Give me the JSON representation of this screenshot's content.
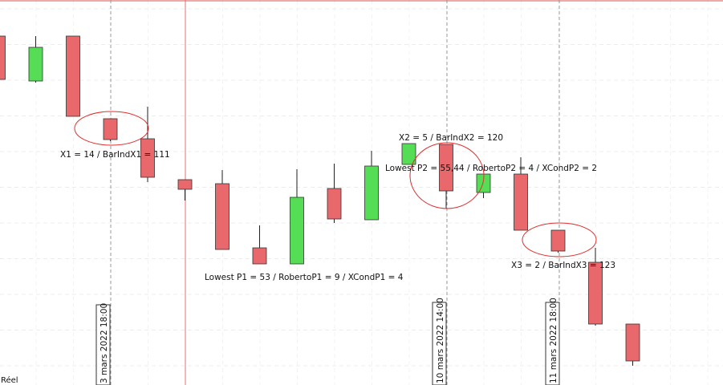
{
  "chart_data": {
    "type": "candlestick",
    "up_color": "#55dd55",
    "down_color": "#e8686b",
    "ylim": [
      0,
      480
    ],
    "candles": [
      {
        "open": 435,
        "high": 435,
        "low": 381,
        "close": 381
      },
      {
        "open": 379,
        "high": 435,
        "low": 377,
        "close": 421
      },
      {
        "open": 435,
        "high": 435,
        "low": 335,
        "close": 335
      },
      {
        "open": 332,
        "high": 332,
        "low": 304,
        "close": 306
      },
      {
        "open": 307,
        "high": 347,
        "low": 253,
        "close": 259
      },
      {
        "open": 256,
        "high": 256,
        "low": 230,
        "close": 244
      },
      {
        "open": 251,
        "high": 268,
        "low": 169,
        "close": 169
      },
      {
        "open": 171,
        "high": 199,
        "low": 151,
        "close": 151
      },
      {
        "open": 151,
        "high": 269,
        "low": 151,
        "close": 234
      },
      {
        "open": 245,
        "high": 276,
        "low": 202,
        "close": 207
      },
      {
        "open": 206,
        "high": 292,
        "low": 206,
        "close": 273
      },
      {
        "open": 275,
        "high": 301,
        "low": 275,
        "close": 301
      },
      {
        "open": 300,
        "high": 300,
        "low": 220,
        "close": 242
      },
      {
        "open": 240,
        "high": 263,
        "low": 233,
        "close": 263
      },
      {
        "open": 263,
        "high": 284,
        "low": 193,
        "close": 193
      },
      {
        "open": 193,
        "high": 193,
        "low": 165,
        "close": 167
      },
      {
        "open": 153,
        "high": 171,
        "low": 74,
        "close": 76
      },
      {
        "open": 76,
        "high": 76,
        "low": 24,
        "close": 30
      }
    ]
  },
  "annotations": [
    "X1 = 14  / BarIndX1 = 111",
    "Lowest P1 = 53  / RobertoP1 = 9  / XCondP1 = 4",
    "X2 = 5  / BarIndX2 = 120",
    "Lowest P2 = 55,44  / RobertoP2 = 4  / XCondP2 = 2",
    "X3 = 2  / BarIndX3 = 123"
  ],
  "date_labels": [
    "3 mars 2022 18:00",
    "10 mars 2022 14:00",
    "11 mars 2022 18:00"
  ],
  "status": "Réel"
}
